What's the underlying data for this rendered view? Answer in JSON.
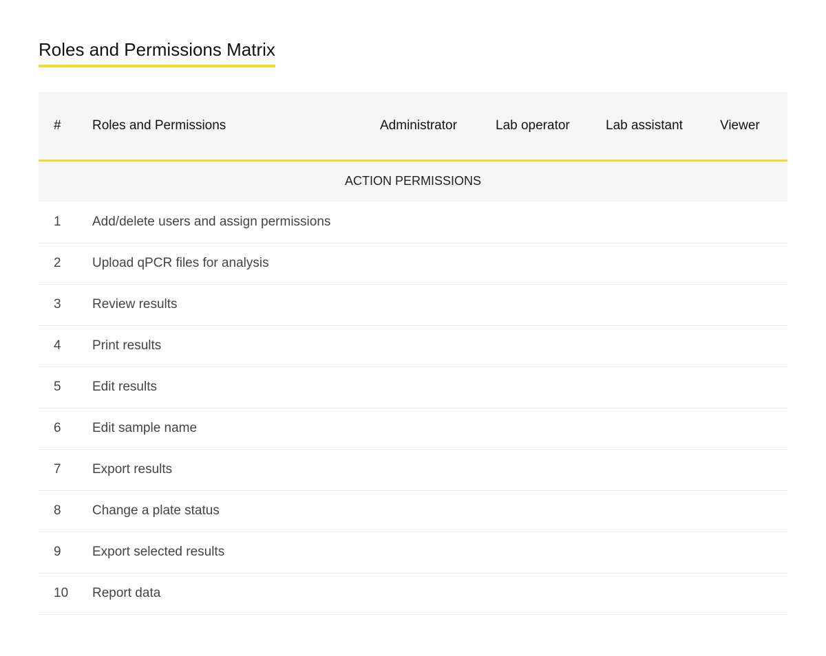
{
  "page_title": "Roles and Permissions Matrix",
  "accent_color": "#f5d830",
  "table": {
    "headers": [
      "#",
      "Roles and Permissions",
      "Administrator",
      "Lab operator",
      "Lab assistant",
      "Viewer"
    ],
    "section": "ACTION PERMISSIONS",
    "rows": [
      {
        "num": "1",
        "label": "Add/delete users and assign permissions"
      },
      {
        "num": "2",
        "label": "Upload qPCR files for analysis"
      },
      {
        "num": "3",
        "label": "Review results"
      },
      {
        "num": "4",
        "label": "Print results"
      },
      {
        "num": "5",
        "label": "Edit results"
      },
      {
        "num": "6",
        "label": "Edit sample name"
      },
      {
        "num": "7",
        "label": "Export results"
      },
      {
        "num": "8",
        "label": "Change a plate status"
      },
      {
        "num": "9",
        "label": "Export selected results"
      },
      {
        "num": "10",
        "label": "Report data"
      }
    ]
  }
}
